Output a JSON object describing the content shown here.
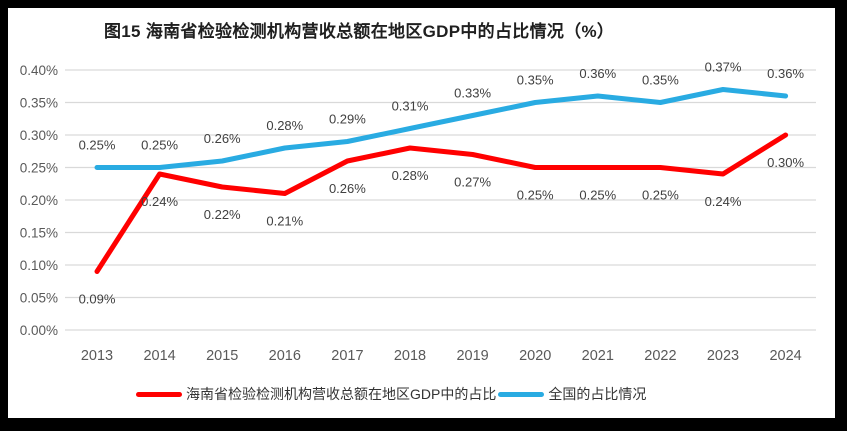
{
  "title": "图15 海南省检验检测机构营收总额在地区GDP中的占比情况（%）",
  "colors": {
    "frame": "#000000",
    "background": "#FFFFFF",
    "grid": "#D9D9D9",
    "title_text": "#1F1F1F",
    "axis_text": "#595959",
    "data_label_text": "#404040",
    "hainan_series": "#FF0000",
    "national_series": "#29ABE2"
  },
  "chart_data": {
    "type": "line",
    "title": "图15 海南省检验检测机构营收总额在地区GDP中的占比情况（%）",
    "xlabel": "",
    "ylabel": "",
    "grid": true,
    "legend_position": "bottom",
    "ylim": [
      0.0,
      0.4
    ],
    "y_tick_labels": [
      "0.00%",
      "0.05%",
      "0.10%",
      "0.15%",
      "0.20%",
      "0.25%",
      "0.30%",
      "0.35%",
      "0.40%"
    ],
    "categories": [
      "2013",
      "2014",
      "2015",
      "2016",
      "2017",
      "2018",
      "2019",
      "2020",
      "2021",
      "2022",
      "2023",
      "2024"
    ],
    "series": [
      {
        "name": "海南省检验检测机构营收总额在地区GDP中的占比",
        "color_key": "hainan_series",
        "label_position": "below",
        "values": [
          0.09,
          0.24,
          0.22,
          0.21,
          0.26,
          0.28,
          0.27,
          0.25,
          0.25,
          0.25,
          0.24,
          0.3
        ],
        "labels": [
          "0.09%",
          "0.24%",
          "0.22%",
          "0.21%",
          "0.26%",
          "0.28%",
          "0.27%",
          "0.25%",
          "0.25%",
          "0.25%",
          "0.24%",
          "0.30%"
        ]
      },
      {
        "name": "全国的占比情况",
        "color_key": "national_series",
        "label_position": "above",
        "values": [
          0.25,
          0.25,
          0.26,
          0.28,
          0.29,
          0.31,
          0.33,
          0.35,
          0.36,
          0.35,
          0.37,
          0.36
        ],
        "labels": [
          "0.25%",
          "0.25%",
          "0.26%",
          "0.28%",
          "0.29%",
          "0.31%",
          "0.33%",
          "0.35%",
          "0.36%",
          "0.35%",
          "0.37%",
          "0.36%"
        ]
      }
    ]
  }
}
